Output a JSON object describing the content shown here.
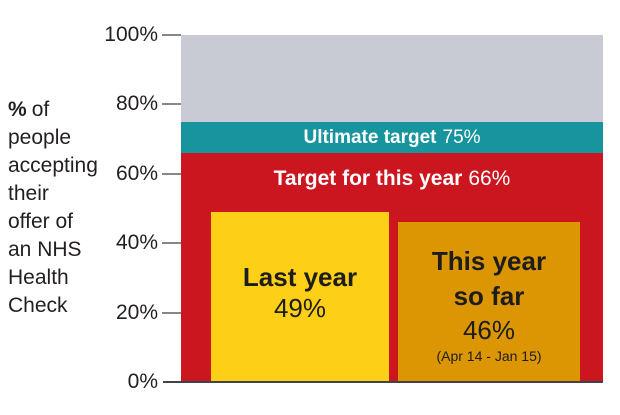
{
  "chart_data": {
    "type": "bar",
    "title": "",
    "ylabel": "% of people accepting their offer of an NHS Health Check",
    "y_axis": {
      "ticks": [
        "100%",
        "80%",
        "60%",
        "40%",
        "20%",
        "0%"
      ],
      "range": [
        0,
        100
      ],
      "unit": "%"
    },
    "grid": "off",
    "bands": [
      {
        "name": "above-ultimate-target",
        "from": 75,
        "to": 100,
        "color": "#c8cad4"
      },
      {
        "name": "ultimate-target",
        "label": "Ultimate target",
        "value": 75,
        "value_label": "75%",
        "from": 66,
        "to": 75,
        "color": "#17949d"
      },
      {
        "name": "target-this-year",
        "label": "Target for this year",
        "value": 66,
        "value_label": "66%",
        "from": 0,
        "to": 66,
        "color": "#cc161f"
      }
    ],
    "bars": [
      {
        "name": "last-year",
        "label": "Last year",
        "value": 49,
        "value_label": "49%",
        "color": "#fdd017"
      },
      {
        "name": "this-year-so-far",
        "label": "This year so far",
        "label_line1": "This year",
        "label_line2": "so far",
        "value": 46,
        "value_label": "46%",
        "note": "(Apr 14 - Jan 15)",
        "color": "#dc9503"
      }
    ]
  },
  "axis_label": {
    "symbol": "%",
    "first_line_rest": "of",
    "lines": [
      "people",
      "accepting",
      "their",
      "offer of",
      "an NHS",
      "Health",
      "Check"
    ]
  },
  "colors": {
    "background": "#ffffff",
    "text": "#231f20",
    "white_text": "#ffffff",
    "tick": "#85878a",
    "baseline": "#3f434a"
  }
}
